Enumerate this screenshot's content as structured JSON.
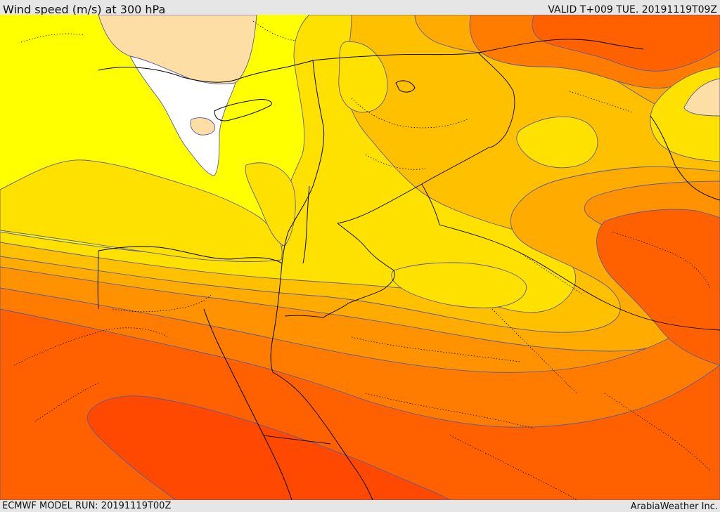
{
  "header": {
    "title": "Wind speed (m/s) at 300 hPa",
    "valid": "VALID T+009 TUE. 20191119T09Z"
  },
  "footer": {
    "model_run": "ECMWF MODEL RUN: 20191119T00Z",
    "credit": "ArabiaWeather Inc."
  },
  "map": {
    "variable": "wind speed",
    "unit": "m/s",
    "level_hpa": 300,
    "colors": {
      "white": "#ffffff",
      "peach": "#fddfa6",
      "yellow": "#ffff00",
      "gold": "#ffe100",
      "amber": "#ffc000",
      "orange_light": "#ffab00",
      "orange": "#ff9200",
      "orange_dark": "#ff7c00",
      "red_orange": "#ff6100",
      "red": "#ff4800",
      "contour": "#5a5aa0",
      "border": "#000000"
    }
  }
}
